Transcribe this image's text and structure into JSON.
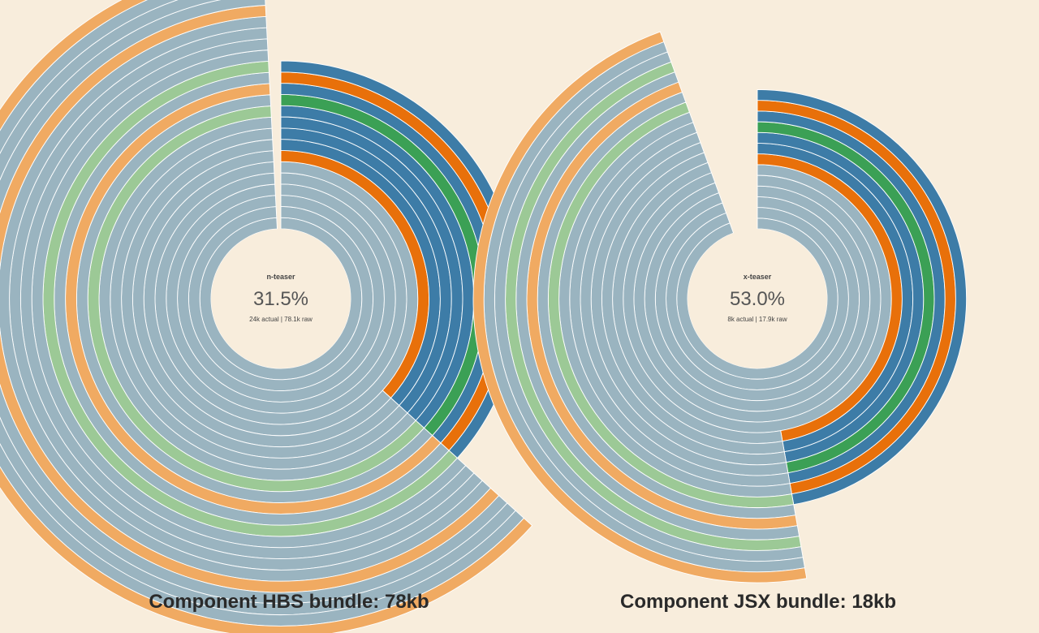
{
  "colors": {
    "background": "#f8eddc",
    "grey": "#9ab4c0",
    "orange_light": "#f0aa62",
    "green_light": "#9cc996",
    "green": "#3ba055",
    "blue": "#3d7ca7",
    "orange": "#e8700a"
  },
  "chart_data": [
    {
      "type": "sunburst",
      "root": "n-teaser",
      "center": {
        "name": "n-teaser",
        "percent": "31.5%",
        "size_text": "24k actual | 78.1k raw"
      },
      "caption": "Component HBS bundle: 78kb",
      "main_fraction": 0.37,
      "colored_rings": [
        "orange",
        "blue",
        "blue",
        "blue",
        "blue",
        "green",
        "blue",
        "orange",
        "blue"
      ],
      "grey_fraction": 0.63,
      "outer_rings": [
        "grey",
        "grey",
        "grey",
        "grey",
        "green_light",
        "grey",
        "orange_light",
        "grey",
        "green_light",
        "grey",
        "grey",
        "grey",
        "grey",
        "orange_light",
        "grey",
        "grey",
        "grey",
        "orange_light"
      ]
    },
    {
      "type": "sunburst",
      "root": "x-teaser",
      "center": {
        "name": "x-teaser",
        "percent": "53.0%",
        "size_text": "8k actual | 17.9k raw"
      },
      "caption": "Component JSX bundle: 18kb",
      "main_fraction": 0.5,
      "colored_rings": [
        "orange",
        "blue",
        "blue",
        "green",
        "blue",
        "orange",
        "blue"
      ],
      "grey_fraction": 0.4,
      "outer_rings": [
        "grey",
        "grey",
        "grey",
        "grey",
        "grey",
        "grey",
        "green_light",
        "grey",
        "orange_light",
        "grey",
        "green_light",
        "grey",
        "grey",
        "orange_light"
      ]
    }
  ]
}
